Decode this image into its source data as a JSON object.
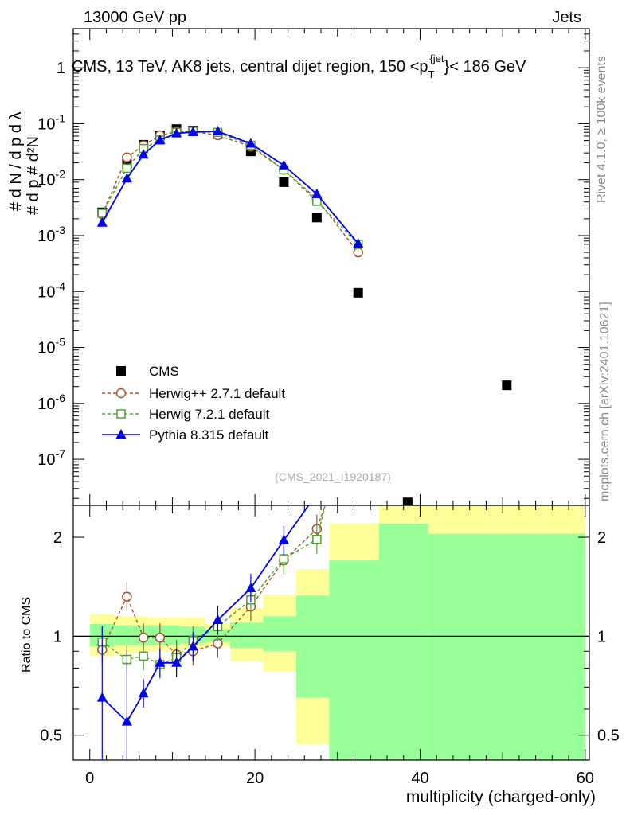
{
  "header": {
    "left": "13000 GeV pp",
    "right": "Jets"
  },
  "plot_title": "CMS, 13 TeV, AK8 jets, central dijet region, 150 <p_T^{jet}< 186 GeV",
  "side_labels": {
    "rivet": "Rivet 4.1.0, ≥ 100k events",
    "mcplots": "mcplots.cern.ch [arXiv:2401.10621]"
  },
  "analysis_tag": "(CMS_2021_I1920187)",
  "colors": {
    "cms": "#000000",
    "herwigpp": "#a0522d",
    "herwig7": "#4da02a",
    "pythia": "#0000ee",
    "band_yellow": "#ffff99",
    "band_green": "#99ff99"
  },
  "chart_data": [
    {
      "type": "scatter",
      "panel": "main",
      "ylabel": "1/(dN/dp_T) d²N/(dp_T dλ)",
      "yscale": "log",
      "ylim": [
        1.5e-08,
        5
      ],
      "xlim": [
        -2,
        60.5
      ],
      "y_tick_labels": [
        "1",
        "10^-1",
        "10^-2",
        "10^-3",
        "10^-4",
        "10^-5",
        "10^-6",
        "10^-7"
      ],
      "series": [
        {
          "name": "CMS",
          "marker": "filled-square",
          "x": [
            1.5,
            4.5,
            6.5,
            8.5,
            10.5,
            12.5,
            15.5,
            19.5,
            23.5,
            27.5,
            32.5,
            38.5,
            50.5
          ],
          "y": [
            0.0026,
            0.019,
            0.042,
            0.062,
            0.08,
            0.075,
            0.065,
            0.032,
            0.009,
            0.0021,
            9.5e-05,
            1.7e-08,
            2.1e-06
          ]
        },
        {
          "name": "Herwig++ 2.7.1 default",
          "marker": "open-circle",
          "x": [
            1.5,
            4.5,
            6.5,
            8.5,
            10.5,
            12.5,
            15.5,
            19.5,
            23.5,
            27.5,
            32.5
          ],
          "y": [
            0.0024,
            0.025,
            0.041,
            0.062,
            0.072,
            0.073,
            0.062,
            0.039,
            0.015,
            0.0045,
            0.0005
          ]
        },
        {
          "name": "Herwig 7.2.1 default",
          "marker": "open-square",
          "x": [
            1.5,
            4.5,
            6.5,
            8.5,
            10.5,
            12.5,
            15.5,
            19.5,
            23.5,
            27.5,
            32.5
          ],
          "y": [
            0.0025,
            0.016,
            0.036,
            0.051,
            0.07,
            0.073,
            0.07,
            0.041,
            0.015,
            0.0041,
            0.0007
          ]
        },
        {
          "name": "Pythia 8.315 default",
          "marker": "filled-triangle",
          "x": [
            1.5,
            4.5,
            6.5,
            8.5,
            10.5,
            12.5,
            15.5,
            19.5,
            23.5,
            27.5,
            32.5
          ],
          "y": [
            0.0017,
            0.0105,
            0.028,
            0.051,
            0.067,
            0.071,
            0.073,
            0.044,
            0.018,
            0.0055,
            0.00072
          ]
        }
      ]
    },
    {
      "type": "scatter",
      "panel": "ratio",
      "xlabel": "multiplicity (charged-only)",
      "ylabel": "Ratio to CMS",
      "yscale": "log",
      "ylim": [
        0.42,
        2.5
      ],
      "xlim": [
        -2,
        60.5
      ],
      "x_ticks": [
        0,
        20,
        40,
        60
      ],
      "y_ticks": [
        0.5,
        1,
        2
      ],
      "bands": {
        "bins": [
          [
            0,
            3
          ],
          [
            3,
            5
          ],
          [
            5,
            7
          ],
          [
            7,
            9
          ],
          [
            9,
            11
          ],
          [
            11,
            14
          ],
          [
            14,
            17
          ],
          [
            17,
            21
          ],
          [
            21,
            25
          ],
          [
            25,
            29
          ],
          [
            29,
            35
          ],
          [
            35,
            41
          ],
          [
            41,
            60
          ]
        ],
        "yellow": [
          [
            0.87,
            1.17
          ],
          [
            0.88,
            1.15
          ],
          [
            0.89,
            1.15
          ],
          [
            0.9,
            1.14
          ],
          [
            0.9,
            1.14
          ],
          [
            0.91,
            1.14
          ],
          [
            0.93,
            1.09
          ],
          [
            0.84,
            1.22
          ],
          [
            0.78,
            1.34
          ],
          [
            0.47,
            1.6
          ],
          [
            0.1,
            2.2
          ],
          [
            0.1,
            10
          ],
          [
            0.1,
            10
          ]
        ],
        "green": [
          [
            0.93,
            1.09
          ],
          [
            0.94,
            1.08
          ],
          [
            0.94,
            1.08
          ],
          [
            0.94,
            1.08
          ],
          [
            0.94,
            1.08
          ],
          [
            0.95,
            1.07
          ],
          [
            0.96,
            1.05
          ],
          [
            0.92,
            1.1
          ],
          [
            0.9,
            1.15
          ],
          [
            0.65,
            1.33
          ],
          [
            0.1,
            1.7
          ],
          [
            0.1,
            2.2
          ],
          [
            0.1,
            2.05
          ]
        ]
      },
      "series": [
        {
          "name": "Herwig++ 2.7.1 default",
          "x": [
            1.5,
            4.5,
            6.5,
            8.5,
            10.5,
            12.5,
            15.5,
            19.5,
            23.5,
            27.5,
            28.5
          ],
          "y": [
            0.91,
            1.32,
            0.99,
            0.99,
            0.88,
            0.9,
            0.95,
            1.23,
            1.7,
            2.12,
            2.5
          ]
        },
        {
          "name": "Herwig 7.2.1 default",
          "x": [
            1.5,
            4.5,
            6.5,
            8.5,
            10.5,
            12.5,
            15.5,
            19.5,
            23.5,
            27.5,
            28.5
          ],
          "y": [
            0.96,
            0.85,
            0.87,
            0.82,
            0.86,
            0.97,
            1.07,
            1.29,
            1.72,
            1.97,
            2.5
          ]
        },
        {
          "name": "Pythia 8.315 default",
          "x": [
            1.5,
            4.5,
            6.5,
            8.5,
            10.5,
            12.5,
            15.5,
            19.5,
            23.5,
            26.5
          ],
          "y": [
            0.65,
            0.55,
            0.67,
            0.83,
            0.83,
            0.93,
            1.12,
            1.4,
            1.96,
            2.5
          ]
        }
      ]
    }
  ]
}
